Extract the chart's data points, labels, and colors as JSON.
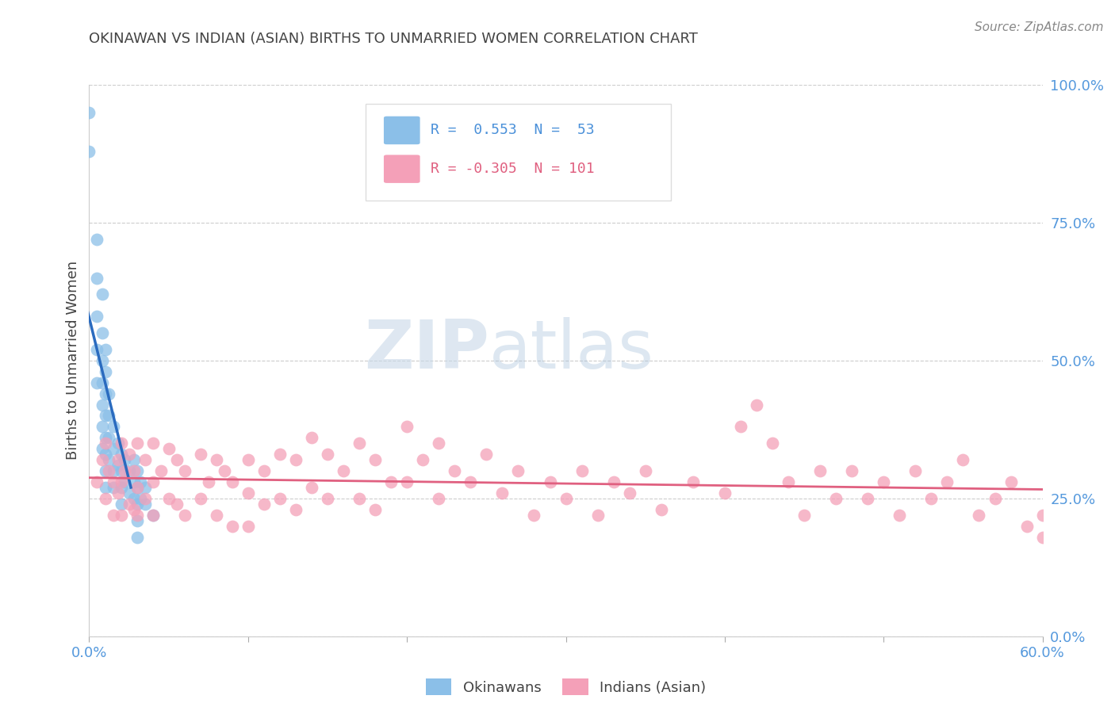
{
  "title": "OKINAWAN VS INDIAN (ASIAN) BIRTHS TO UNMARRIED WOMEN CORRELATION CHART",
  "source": "Source: ZipAtlas.com",
  "ylabel": "Births to Unmarried Women",
  "right_ytick_labels": [
    "0.0%",
    "25.0%",
    "50.0%",
    "75.0%",
    "100.0%"
  ],
  "right_ytick_values": [
    0.0,
    0.25,
    0.5,
    0.75,
    1.0
  ],
  "xtick_labels": [
    "0.0%",
    "",
    "",
    "",
    "",
    "",
    "60.0%"
  ],
  "xtick_values": [
    0.0,
    0.1,
    0.2,
    0.3,
    0.4,
    0.5,
    0.6
  ],
  "xlim": [
    0.0,
    0.6
  ],
  "ylim": [
    0.0,
    1.0
  ],
  "okinawan_color": "#8bbfe8",
  "indian_color": "#f4a0b8",
  "okinawan_line_color": "#2a6bbf",
  "indian_line_color": "#e06080",
  "legend_text_color": "#4a90d9",
  "title_color": "#444444",
  "axis_tick_color": "#5599dd",
  "background_color": "#ffffff",
  "grid_color": "#cccccc",
  "watermark_zip": "ZIP",
  "watermark_atlas": "atlas",
  "okinawan_scatter_x": [
    0.0,
    0.0,
    0.005,
    0.005,
    0.005,
    0.005,
    0.005,
    0.008,
    0.008,
    0.008,
    0.008,
    0.008,
    0.008,
    0.008,
    0.01,
    0.01,
    0.01,
    0.01,
    0.01,
    0.01,
    0.01,
    0.01,
    0.012,
    0.012,
    0.012,
    0.012,
    0.015,
    0.015,
    0.015,
    0.015,
    0.018,
    0.018,
    0.02,
    0.02,
    0.02,
    0.02,
    0.022,
    0.022,
    0.025,
    0.025,
    0.028,
    0.028,
    0.028,
    0.03,
    0.03,
    0.03,
    0.03,
    0.03,
    0.032,
    0.032,
    0.035,
    0.035,
    0.04
  ],
  "okinawan_scatter_y": [
    0.88,
    0.95,
    0.72,
    0.65,
    0.58,
    0.52,
    0.46,
    0.62,
    0.55,
    0.5,
    0.46,
    0.42,
    0.38,
    0.34,
    0.52,
    0.48,
    0.44,
    0.4,
    0.36,
    0.33,
    0.3,
    0.27,
    0.44,
    0.4,
    0.36,
    0.32,
    0.38,
    0.34,
    0.3,
    0.27,
    0.35,
    0.31,
    0.33,
    0.3,
    0.27,
    0.24,
    0.32,
    0.28,
    0.3,
    0.26,
    0.32,
    0.28,
    0.25,
    0.3,
    0.27,
    0.24,
    0.21,
    0.18,
    0.28,
    0.25,
    0.27,
    0.24,
    0.22
  ],
  "indian_scatter_x": [
    0.005,
    0.008,
    0.01,
    0.01,
    0.012,
    0.015,
    0.015,
    0.018,
    0.018,
    0.02,
    0.02,
    0.02,
    0.022,
    0.025,
    0.025,
    0.028,
    0.028,
    0.03,
    0.03,
    0.03,
    0.035,
    0.035,
    0.04,
    0.04,
    0.04,
    0.045,
    0.05,
    0.05,
    0.055,
    0.055,
    0.06,
    0.06,
    0.07,
    0.07,
    0.075,
    0.08,
    0.08,
    0.085,
    0.09,
    0.09,
    0.1,
    0.1,
    0.1,
    0.11,
    0.11,
    0.12,
    0.12,
    0.13,
    0.13,
    0.14,
    0.14,
    0.15,
    0.15,
    0.16,
    0.17,
    0.17,
    0.18,
    0.18,
    0.19,
    0.2,
    0.2,
    0.21,
    0.22,
    0.22,
    0.23,
    0.24,
    0.25,
    0.26,
    0.27,
    0.28,
    0.29,
    0.3,
    0.31,
    0.32,
    0.33,
    0.34,
    0.35,
    0.36,
    0.38,
    0.4,
    0.41,
    0.42,
    0.43,
    0.44,
    0.45,
    0.46,
    0.47,
    0.48,
    0.49,
    0.5,
    0.51,
    0.52,
    0.53,
    0.54,
    0.55,
    0.56,
    0.57,
    0.58,
    0.59,
    0.6,
    0.6
  ],
  "indian_scatter_y": [
    0.28,
    0.32,
    0.35,
    0.25,
    0.3,
    0.28,
    0.22,
    0.32,
    0.26,
    0.35,
    0.28,
    0.22,
    0.3,
    0.33,
    0.24,
    0.3,
    0.23,
    0.35,
    0.27,
    0.22,
    0.32,
    0.25,
    0.35,
    0.28,
    0.22,
    0.3,
    0.34,
    0.25,
    0.32,
    0.24,
    0.3,
    0.22,
    0.33,
    0.25,
    0.28,
    0.32,
    0.22,
    0.3,
    0.28,
    0.2,
    0.32,
    0.26,
    0.2,
    0.3,
    0.24,
    0.33,
    0.25,
    0.32,
    0.23,
    0.36,
    0.27,
    0.33,
    0.25,
    0.3,
    0.35,
    0.25,
    0.32,
    0.23,
    0.28,
    0.38,
    0.28,
    0.32,
    0.35,
    0.25,
    0.3,
    0.28,
    0.33,
    0.26,
    0.3,
    0.22,
    0.28,
    0.25,
    0.3,
    0.22,
    0.28,
    0.26,
    0.3,
    0.23,
    0.28,
    0.26,
    0.38,
    0.42,
    0.35,
    0.28,
    0.22,
    0.3,
    0.25,
    0.3,
    0.25,
    0.28,
    0.22,
    0.3,
    0.25,
    0.28,
    0.32,
    0.22,
    0.25,
    0.28,
    0.2,
    0.22,
    0.18
  ]
}
